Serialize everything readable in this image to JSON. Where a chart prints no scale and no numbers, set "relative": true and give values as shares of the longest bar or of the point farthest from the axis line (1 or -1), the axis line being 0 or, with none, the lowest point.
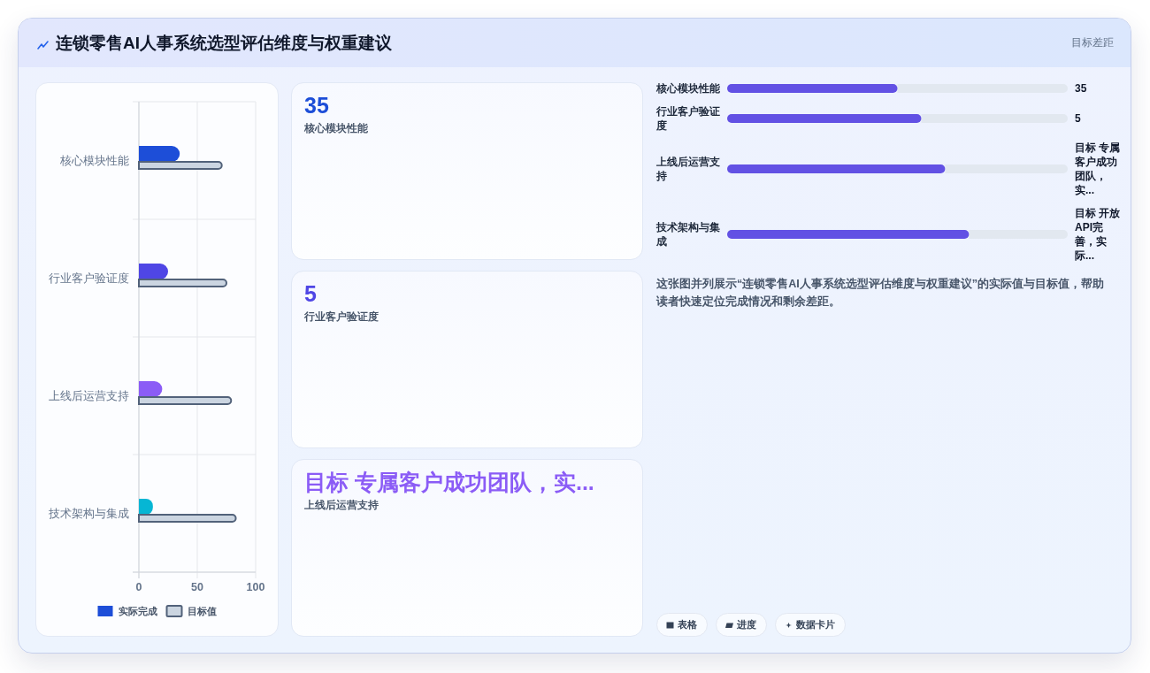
{
  "chart_data": [
    {
      "type": "bar",
      "orientation": "horizontal",
      "title": "连锁零售AI人事系统选型评估维度与权重建议",
      "categories": [
        "核心模块性能",
        "行业客户验证度",
        "上线后运营支持",
        "技术架构与集成"
      ],
      "series": [
        {
          "name": "实际完成",
          "color": "#1d4ed8",
          "colors": [
            "#1d4ed8",
            "#4f46e5",
            "#8b5cf6",
            "#06b6d4"
          ],
          "values": [
            35,
            25,
            20,
            12
          ]
        },
        {
          "name": "目标值",
          "color": "#cbd5e1",
          "values": [
            71,
            75,
            79,
            83
          ]
        }
      ],
      "xlim": [
        0,
        100
      ],
      "xticks": [
        0,
        50,
        100
      ],
      "grid": true,
      "legend": "bottom"
    },
    {
      "type": "other",
      "categories": [
        "核心模块性能",
        "行业客户验证度",
        "上线后运营支持"
      ],
      "value_labels": [
        "35",
        "5",
        "目标 专属客户成功团队，实..."
      ]
    },
    {
      "type": "bar",
      "orientation": "horizontal",
      "stacked": true,
      "relative": true,
      "subtitle": "目标差距",
      "categories": [
        "核心模块性能",
        "行业客户验证度",
        "上线后运营支持",
        "技术架构与集成"
      ],
      "series": [
        {
          "color": "#6251e4",
          "values": [
            0.5,
            0.57,
            0.64,
            0.71
          ]
        },
        {
          "color": "#e2e8f0",
          "values": [
            0.5,
            0.43,
            0.36,
            0.29
          ]
        }
      ],
      "annotations": [
        "35",
        "5",
        "目标 专属客户成功团队，实...",
        "目标 开放API完善，实际...",
        "这张图并列展示“连锁零售AI人事系统选型评估维度与权重建议”的实际值与目标值，帮助读者快速定位完成情况和剩余差距。",
        "表格",
        "进度",
        "数据卡片"
      ]
    }
  ]
}
